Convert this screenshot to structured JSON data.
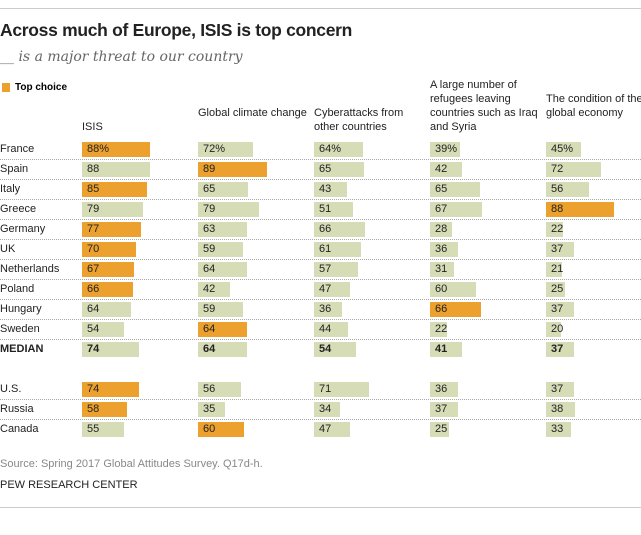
{
  "title": "Across much of Europe, ISIS is top concern",
  "subtitle": "__ is a major threat to our country",
  "legend": {
    "label": "Top choice",
    "color": "#ECA12F"
  },
  "colors": {
    "top": "#ECA12F",
    "other": "#D6DCB6"
  },
  "source": "Source: Spring 2017 Global Attitudes Survey. Q17d-h.",
  "credit": "PEW RESEARCH CENTER",
  "chart_data": {
    "type": "table",
    "columns": [
      "ISIS",
      "Global climate change",
      "Cyberattacks from other countries",
      "A large number of refugees leaving countries such as Iraq and Syria",
      "The condition of the global economy"
    ],
    "rows": [
      {
        "country": "France",
        "values": [
          "88%",
          "72%",
          "64%",
          "39%",
          "45%"
        ],
        "top": 0
      },
      {
        "country": "Spain",
        "values": [
          "88",
          "89",
          "65",
          "42",
          "72"
        ],
        "top": 1
      },
      {
        "country": "Italy",
        "values": [
          "85",
          "65",
          "43",
          "65",
          "56"
        ],
        "top": 0
      },
      {
        "country": "Greece",
        "values": [
          "79",
          "79",
          "51",
          "67",
          "88"
        ],
        "top": 4
      },
      {
        "country": "Germany",
        "values": [
          "77",
          "63",
          "66",
          "28",
          "22"
        ],
        "top": 0
      },
      {
        "country": "UK",
        "values": [
          "70",
          "59",
          "61",
          "36",
          "37"
        ],
        "top": 0
      },
      {
        "country": "Netherlands",
        "values": [
          "67",
          "64",
          "57",
          "31",
          "21"
        ],
        "top": 0
      },
      {
        "country": "Poland",
        "values": [
          "66",
          "42",
          "47",
          "60",
          "25"
        ],
        "top": 0
      },
      {
        "country": "Hungary",
        "values": [
          "64",
          "59",
          "36",
          "66",
          "37"
        ],
        "top": 3
      },
      {
        "country": "Sweden",
        "values": [
          "54",
          "64",
          "44",
          "22",
          "20"
        ],
        "top": 1
      },
      {
        "country": "MEDIAN",
        "values": [
          "74",
          "64",
          "54",
          "41",
          "37"
        ],
        "top": null,
        "bold": true
      },
      {
        "country": "U.S.",
        "values": [
          "74",
          "56",
          "71",
          "36",
          "37"
        ],
        "top": 0
      },
      {
        "country": "Russia",
        "values": [
          "58",
          "35",
          "34",
          "37",
          "38"
        ],
        "top": 0
      },
      {
        "country": "Canada",
        "values": [
          "55",
          "60",
          "47",
          "25",
          "33"
        ],
        "top": 1
      }
    ]
  }
}
